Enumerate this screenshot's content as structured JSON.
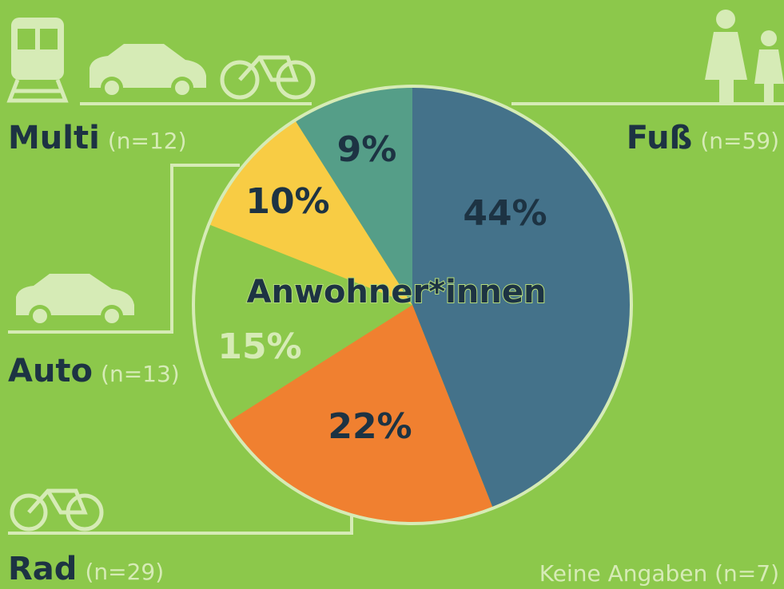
{
  "chart_data": {
    "type": "pie",
    "title": "Anwohner*innen",
    "values": [
      44,
      22,
      15,
      10,
      9
    ],
    "value_labels": [
      "44%",
      "22%",
      "15%",
      "10%",
      "9%"
    ],
    "colors": [
      "#44728a",
      "#f08030",
      "#8cc84b",
      "#f8cc44",
      "#559e88"
    ],
    "groups": [
      {
        "name": "Fuß",
        "n": "(n=59)"
      },
      {
        "name": "Rad",
        "n": "(n=29)"
      },
      {
        "name": "Auto",
        "n": "(n=13)"
      },
      {
        "name": "Multi",
        "n": "(n=12)"
      }
    ],
    "note": "Keine Angaben (n=7)"
  }
}
